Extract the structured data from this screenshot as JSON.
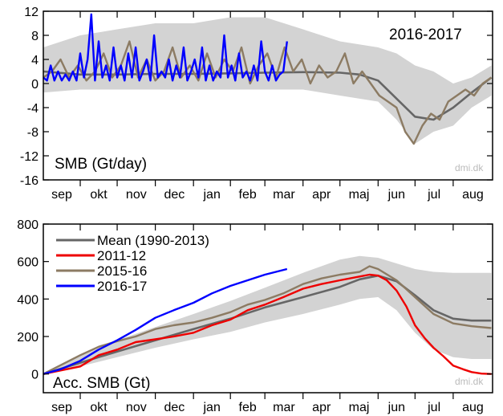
{
  "chart_data": [
    {
      "type": "line",
      "season_label": "2016-2017",
      "ylabel_inside": "SMB (Gt/day)",
      "watermark": "dmi.dk",
      "ylim": [
        -16,
        12
      ],
      "yticks": [
        12,
        8,
        4,
        0,
        -4,
        -8,
        -12,
        -16
      ],
      "x_months": [
        "sep",
        "okt",
        "nov",
        "dec",
        "jan",
        "feb",
        "mar",
        "apr",
        "maj",
        "jun",
        "jul",
        "aug"
      ],
      "x_unit": "day of season (1 = 1 Sep)",
      "band": {
        "description": "shaded range of daily SMB (1990-2013)",
        "x": [
          1,
          31,
          61,
          92,
          123,
          153,
          181,
          212,
          242,
          273,
          288,
          303,
          318,
          334,
          349,
          365
        ],
        "lower": [
          -1.5,
          -1,
          -1,
          -1,
          -1,
          -1,
          -1,
          -1,
          -2,
          -3,
          -6,
          -10,
          -8,
          -7,
          -4,
          -2
        ],
        "upper": [
          6,
          8,
          9,
          10,
          10,
          11,
          11,
          9,
          7,
          6,
          5,
          3,
          2,
          0,
          1,
          3
        ]
      },
      "series": [
        {
          "name": "Mean (1990-2013)",
          "color": "#666666",
          "x": [
            1,
            31,
            61,
            92,
            123,
            153,
            181,
            212,
            242,
            258,
            273,
            288,
            303,
            318,
            334,
            349,
            365
          ],
          "y": [
            2,
            1.5,
            1.5,
            1.6,
            1.6,
            1.7,
            1.8,
            1.9,
            1.8,
            1.5,
            0.5,
            -2.5,
            -5.5,
            -6,
            -4,
            -1.5,
            1
          ]
        },
        {
          "name": "2015-16",
          "color": "#8c7b63",
          "x": [
            1,
            8,
            15,
            22,
            29,
            36,
            43,
            50,
            57,
            64,
            71,
            78,
            85,
            92,
            99,
            106,
            113,
            120,
            127,
            134,
            141,
            148,
            155,
            162,
            169,
            176,
            183,
            190,
            197,
            204,
            211,
            218,
            225,
            232,
            239,
            246,
            253,
            260,
            267,
            274,
            281,
            288,
            295,
            302,
            309,
            316,
            323,
            330,
            337,
            344,
            351,
            358,
            365
          ],
          "y": [
            1,
            2,
            4,
            1,
            3,
            0.5,
            2,
            5,
            1,
            3,
            7,
            1,
            4,
            0.5,
            2,
            6,
            1,
            3,
            0.5,
            5,
            1,
            4,
            2,
            6,
            0,
            3,
            5,
            1,
            6,
            2,
            4,
            0,
            3,
            1,
            2,
            5,
            0,
            2,
            0,
            -2,
            -3,
            -4,
            -8,
            -10,
            -7,
            -5,
            -6,
            -3,
            -2,
            -1,
            -2,
            0,
            1
          ]
        },
        {
          "name": "2016-17",
          "color": "#0000ff",
          "x": [
            1,
            4,
            7,
            10,
            13,
            16,
            19,
            22,
            25,
            28,
            31,
            34,
            37,
            40,
            43,
            46,
            49,
            52,
            55,
            58,
            61,
            64,
            67,
            70,
            73,
            76,
            79,
            82,
            85,
            88,
            91,
            94,
            97,
            100,
            103,
            106,
            109,
            112,
            115,
            118,
            121,
            124,
            127,
            130,
            133,
            136,
            139,
            142,
            145,
            148,
            151,
            154,
            157,
            160,
            163,
            166,
            169,
            172,
            175,
            178,
            181,
            184,
            187,
            190,
            193,
            196,
            199
          ],
          "y": [
            1,
            0.5,
            3,
            0.5,
            2,
            0.5,
            1.5,
            0.5,
            2,
            0.5,
            5,
            1,
            4,
            11.5,
            0.5,
            7,
            1,
            3,
            0.5,
            6,
            1,
            3,
            0.5,
            5,
            1,
            6,
            0.5,
            2,
            4,
            0.5,
            8,
            1,
            2,
            1,
            4,
            0.5,
            3,
            1,
            6,
            0.5,
            2,
            4,
            1,
            6,
            0.5,
            3,
            0.5,
            2,
            1,
            8,
            1,
            3,
            0.5,
            5,
            1,
            2,
            0.5,
            3,
            0.5,
            7,
            2,
            0.5,
            3,
            0.5,
            1.5,
            2,
            7
          ]
        }
      ]
    },
    {
      "type": "line",
      "ylabel_inside": "Acc. SMB (Gt)",
      "watermark": "dmi.dk",
      "ylim": [
        -100,
        800
      ],
      "yticks": [
        800,
        600,
        400,
        200,
        0
      ],
      "x_months": [
        "sep",
        "okt",
        "nov",
        "dec",
        "jan",
        "feb",
        "mar",
        "apr",
        "maj",
        "jun",
        "jul",
        "aug"
      ],
      "x_unit": "day of season (1 = 1 Sep)",
      "band": {
        "description": "shaded range of accumulated SMB (1990-2013)",
        "x": [
          1,
          31,
          61,
          92,
          123,
          153,
          181,
          212,
          242,
          258,
          273,
          288,
          303,
          318,
          334,
          349,
          365
        ],
        "lower": [
          0,
          40,
          90,
          140,
          185,
          225,
          275,
          320,
          370,
          400,
          410,
          340,
          220,
          130,
          90,
          80,
          80
        ],
        "upper": [
          0,
          100,
          180,
          250,
          320,
          390,
          460,
          540,
          610,
          630,
          620,
          590,
          560,
          545,
          540,
          540,
          540
        ]
      },
      "legend": {
        "position": "top-left",
        "entries": [
          "Mean (1990-2013)",
          "2011-12",
          "2015-16",
          "2016-17"
        ]
      },
      "series": [
        {
          "name": "Mean (1990-2013)",
          "color": "#666666",
          "x": [
            1,
            31,
            61,
            92,
            123,
            153,
            181,
            212,
            242,
            258,
            273,
            288,
            303,
            318,
            334,
            349,
            365
          ],
          "y": [
            0,
            60,
            120,
            180,
            240,
            295,
            355,
            410,
            465,
            505,
            525,
            495,
            420,
            340,
            295,
            285,
            285
          ]
        },
        {
          "name": "2011-12",
          "color": "#ee0000",
          "x": [
            1,
            31,
            46,
            61,
            76,
            92,
            107,
            123,
            138,
            153,
            167,
            181,
            196,
            212,
            227,
            242,
            258,
            266,
            273,
            280,
            288,
            296,
            303,
            311,
            318,
            326,
            334,
            342,
            349,
            357,
            365
          ],
          "y": [
            0,
            40,
            100,
            130,
            170,
            185,
            200,
            220,
            260,
            290,
            340,
            370,
            410,
            455,
            480,
            500,
            520,
            530,
            525,
            500,
            445,
            360,
            260,
            190,
            140,
            95,
            45,
            25,
            10,
            2,
            0
          ]
        },
        {
          "name": "2015-16",
          "color": "#8c7b63",
          "x": [
            1,
            31,
            46,
            61,
            76,
            92,
            107,
            123,
            138,
            153,
            167,
            181,
            196,
            212,
            227,
            242,
            258,
            266,
            273,
            288,
            303,
            318,
            334,
            349,
            365
          ],
          "y": [
            0,
            100,
            145,
            175,
            200,
            240,
            260,
            275,
            300,
            330,
            370,
            395,
            430,
            480,
            510,
            530,
            545,
            575,
            560,
            500,
            410,
            320,
            270,
            255,
            245
          ]
        },
        {
          "name": "2016-17",
          "color": "#0000ff",
          "x": [
            1,
            15,
            31,
            46,
            61,
            76,
            92,
            107,
            123,
            138,
            153,
            167,
            181,
            190,
            199
          ],
          "y": [
            0,
            25,
            70,
            130,
            180,
            235,
            300,
            340,
            380,
            430,
            470,
            500,
            530,
            545,
            560
          ]
        }
      ]
    }
  ]
}
